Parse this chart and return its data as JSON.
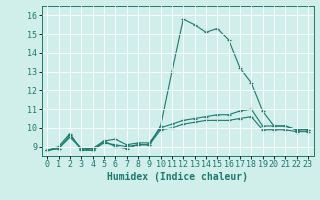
{
  "x": [
    0,
    1,
    2,
    3,
    4,
    5,
    6,
    7,
    8,
    9,
    10,
    11,
    12,
    13,
    14,
    15,
    16,
    17,
    18,
    19,
    20,
    21,
    22,
    23
  ],
  "line1": [
    8.8,
    9.0,
    9.7,
    8.8,
    8.8,
    9.3,
    9.0,
    8.9,
    9.1,
    9.1,
    10.1,
    13.0,
    15.8,
    15.5,
    15.1,
    15.3,
    14.7,
    13.2,
    12.4,
    10.9,
    10.1,
    10.1,
    9.9,
    9.9
  ],
  "line2": [
    8.8,
    8.9,
    9.6,
    8.9,
    8.9,
    9.3,
    9.4,
    9.1,
    9.2,
    9.2,
    10.0,
    10.2,
    10.4,
    10.5,
    10.6,
    10.7,
    10.7,
    10.9,
    11.0,
    10.1,
    10.1,
    10.1,
    9.9,
    9.9
  ],
  "line3": [
    8.8,
    8.9,
    9.5,
    8.9,
    8.8,
    9.2,
    9.1,
    9.0,
    9.1,
    9.1,
    9.9,
    10.0,
    10.2,
    10.3,
    10.4,
    10.4,
    10.4,
    10.5,
    10.6,
    9.9,
    9.9,
    9.9,
    9.8,
    9.8
  ],
  "line_color": "#1a7a6e",
  "bg_color": "#d0eeea",
  "grid_color": "#ffffff",
  "xlabel": "Humidex (Indice chaleur)",
  "xlabel_fontsize": 7,
  "ylim": [
    8.5,
    16.5
  ],
  "xlim": [
    -0.5,
    23.5
  ],
  "yticks": [
    9,
    10,
    11,
    12,
    13,
    14,
    15,
    16
  ],
  "xticks": [
    0,
    1,
    2,
    3,
    4,
    5,
    6,
    7,
    8,
    9,
    10,
    11,
    12,
    13,
    14,
    15,
    16,
    17,
    18,
    19,
    20,
    21,
    22,
    23
  ],
  "tick_fontsize": 6
}
